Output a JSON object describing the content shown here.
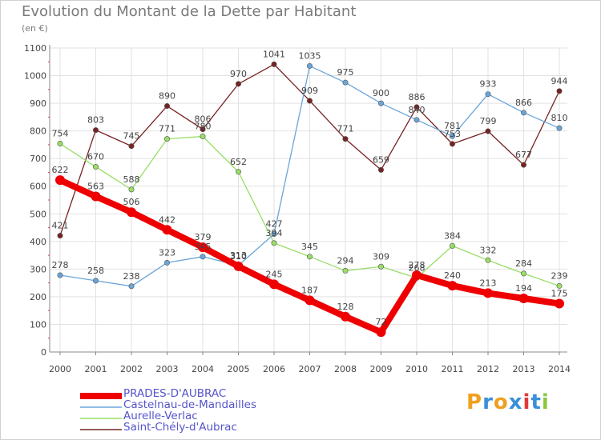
{
  "title": "Evolution du Montant de la Dette par Habitant",
  "subtitle": "(en €)",
  "logo": {
    "text": "Proxiti",
    "letters": [
      {
        "ch": "P",
        "color": "#f0a020"
      },
      {
        "ch": "r",
        "color": "#3a8fd8"
      },
      {
        "ch": "o",
        "color": "#f0a020"
      },
      {
        "ch": "x",
        "color": "#3a8fd8"
      },
      {
        "ch": "i",
        "color": "#e03a3a"
      },
      {
        "ch": "t",
        "color": "#3a8fd8"
      },
      {
        "ch": "i",
        "color": "#8cc63f"
      }
    ]
  },
  "chart_data": {
    "type": "line",
    "title": "Evolution du Montant de la Dette par Habitant",
    "subtitle": "(en €)",
    "x": [
      "2000",
      "2001",
      "2002",
      "2003",
      "2004",
      "2005",
      "2006",
      "2007",
      "2008",
      "2009",
      "2010",
      "2011",
      "2012",
      "2013",
      "2014"
    ],
    "ylim": [
      0,
      1100
    ],
    "yticks": [
      0,
      100,
      200,
      300,
      400,
      500,
      600,
      700,
      800,
      900,
      1000,
      1100
    ],
    "grid": true,
    "legend_position": "bottom-left",
    "series": [
      {
        "name": "PRADES-D'AUBRAC",
        "color": "#ee0000",
        "values": [
          622,
          563,
          506,
          442,
          379,
          310,
          245,
          187,
          128,
          72,
          278,
          240,
          213,
          194,
          175
        ]
      },
      {
        "name": "Castelnau-de-Mandailles",
        "color": "#6aa5d8",
        "values": [
          278,
          258,
          238,
          323,
          345,
          313,
          427,
          1035,
          975,
          900,
          840,
          781,
          933,
          866,
          810
        ]
      },
      {
        "name": "Aurelle-Verlac",
        "color": "#99dd66",
        "values": [
          754,
          670,
          588,
          771,
          780,
          652,
          394,
          345,
          294,
          309,
          268,
          384,
          332,
          284,
          239
        ]
      },
      {
        "name": "Saint-Chély-d'Aubrac",
        "color": "#772222",
        "values": [
          421,
          803,
          745,
          890,
          806,
          970,
          1041,
          909,
          771,
          659,
          886,
          753,
          799,
          677,
          944
        ]
      }
    ]
  }
}
